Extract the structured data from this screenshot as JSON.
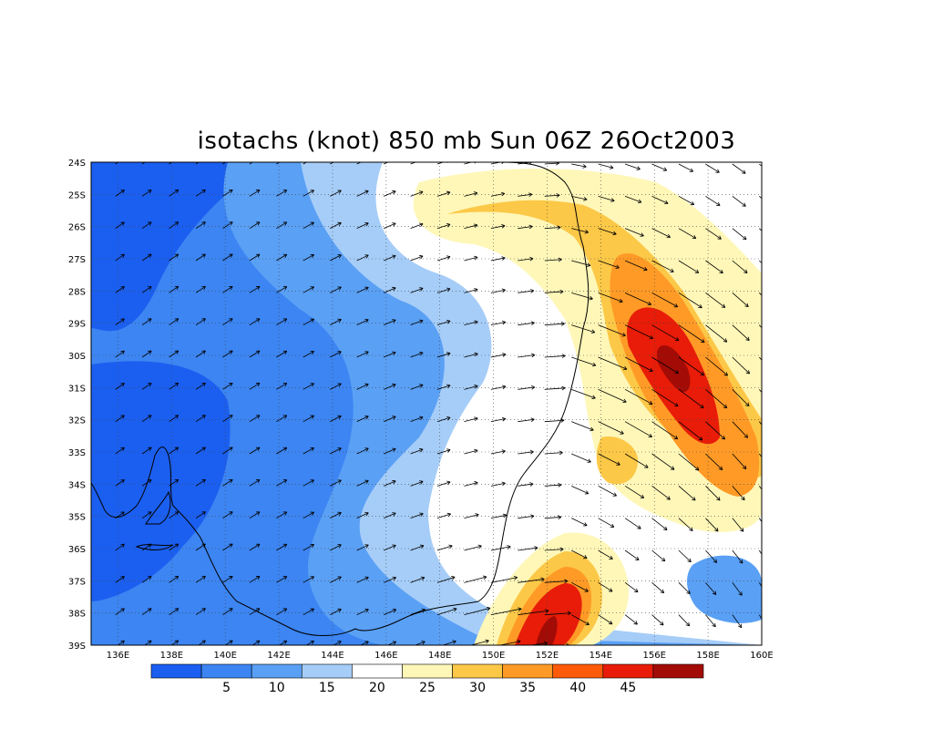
{
  "title": "isotachs (knot) 850 mb Sun 06Z 26Oct2003",
  "map": {
    "lon_labels": [
      "136E",
      "138E",
      "140E",
      "142E",
      "144E",
      "146E",
      "148E",
      "150E",
      "152E",
      "154E",
      "156E",
      "158E",
      "160E"
    ],
    "lat_labels": [
      "24S",
      "25S",
      "26S",
      "27S",
      "28S",
      "29S",
      "30S",
      "31S",
      "32S",
      "33S",
      "34S",
      "35S",
      "36S",
      "37S",
      "38S",
      "39S"
    ],
    "grid": "dotted"
  },
  "colorbar": {
    "labels": [
      "5",
      "10",
      "15",
      "20",
      "25",
      "30",
      "35",
      "40",
      "45"
    ],
    "colors": [
      "#1b5ff0",
      "#3c85f2",
      "#5aa0f5",
      "#a6cdf8",
      "#ffffff",
      "#fff7b8",
      "#fcc847",
      "#ff9a26",
      "#ff5a0a",
      "#e81c08",
      "#a30b06"
    ]
  },
  "colors": {
    "land_line": "#000000",
    "arrow": "#000000"
  }
}
